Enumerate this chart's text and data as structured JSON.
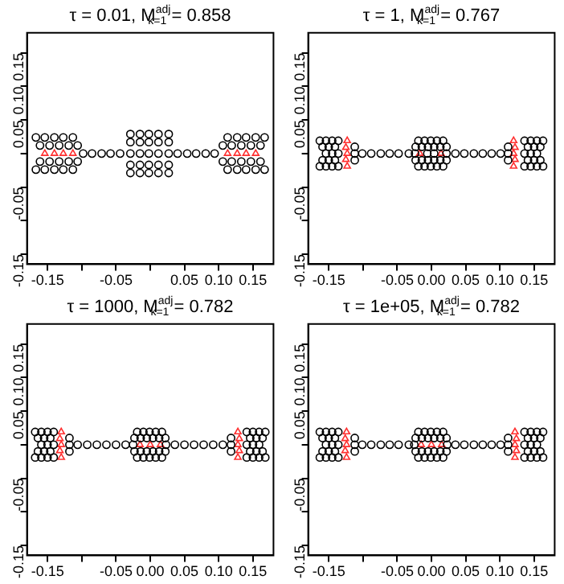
{
  "chart_data": [
    {
      "type": "scatter",
      "title": "τ = 0.01, M$^{adj}$$_{k=1}$ = 0.858",
      "xlim": [
        -0.18,
        0.18
      ],
      "ylim": [
        -0.165,
        0.18
      ],
      "xticks": [
        {
          "value": -0.15,
          "label": "-0.15"
        },
        {
          "value": -0.1,
          "label": null
        },
        {
          "value": -0.05,
          "label": "-0.05"
        },
        {
          "value": 0,
          "label": null
        },
        {
          "value": 0.05,
          "label": "0.05"
        },
        {
          "value": 0.1,
          "label": "0.10"
        },
        {
          "value": 0.15,
          "label": "0.15"
        }
      ],
      "yticks": [
        {
          "value": -0.15,
          "label": "-0.15"
        },
        {
          "value": -0.1,
          "label": null
        },
        {
          "value": -0.05,
          "label": "-0.05"
        },
        {
          "value": 0,
          "label": null
        },
        {
          "value": 0.05,
          "label": "0.05"
        },
        {
          "value": 0.1,
          "label": "0.10"
        },
        {
          "value": 0.15,
          "label": "0.15"
        }
      ],
      "series": [
        {
          "color": "#000000",
          "marker": "circle",
          "x": [
            -0.167,
            -0.154,
            -0.14,
            -0.127,
            -0.113,
            -0.161,
            -0.147,
            -0.133,
            -0.119,
            -0.106,
            -0.161,
            -0.147,
            -0.133,
            -0.119,
            -0.106,
            -0.167,
            -0.154,
            -0.14,
            -0.127,
            -0.113,
            -0.098,
            -0.085,
            -0.071,
            -0.058,
            -0.044,
            -0.029,
            -0.015,
            -0.002,
            0.012,
            0.027,
            -0.029,
            -0.015,
            -0.002,
            0.012,
            0.027,
            -0.029,
            -0.015,
            -0.002,
            0.012,
            0.027,
            -0.029,
            -0.015,
            -0.002,
            0.012,
            0.027,
            -0.029,
            -0.015,
            -0.002,
            0.012,
            0.027,
            0.04,
            0.054,
            0.067,
            0.081,
            0.094,
            0.113,
            0.127,
            0.14,
            0.154,
            0.167,
            0.106,
            0.119,
            0.133,
            0.147,
            0.161,
            0.106,
            0.119,
            0.133,
            0.147,
            0.161,
            0.113,
            0.127,
            0.14,
            0.154,
            0.167
          ],
          "values": [
            0.024,
            0.024,
            0.024,
            0.024,
            0.024,
            0.012,
            0.012,
            0.012,
            0.012,
            0.012,
            -0.012,
            -0.012,
            -0.012,
            -0.012,
            -0.012,
            -0.024,
            -0.024,
            -0.024,
            -0.024,
            -0.024,
            0,
            0,
            0,
            0,
            0,
            0.029,
            0.029,
            0.029,
            0.029,
            0.029,
            0.017,
            0.017,
            0.017,
            0.017,
            0.017,
            0,
            0,
            0,
            0,
            0,
            -0.017,
            -0.017,
            -0.017,
            -0.017,
            -0.017,
            -0.029,
            -0.029,
            -0.029,
            -0.029,
            -0.029,
            0,
            0,
            0,
            0,
            0,
            0.024,
            0.024,
            0.024,
            0.024,
            0.024,
            0.012,
            0.012,
            0.012,
            0.012,
            0.012,
            -0.012,
            -0.012,
            -0.012,
            -0.012,
            -0.012,
            -0.024,
            -0.024,
            -0.024,
            -0.024,
            -0.024
          ]
        },
        {
          "color": "#ff3030",
          "marker": "triangle",
          "x": [
            -0.154,
            -0.14,
            -0.127,
            -0.113,
            0.113,
            0.127,
            0.14,
            0.154
          ],
          "values": [
            0,
            0,
            0,
            0,
            0,
            0,
            0,
            0
          ]
        }
      ]
    },
    {
      "type": "scatter",
      "title": "τ = 1, M$^{adj}$$_{k=1}$ = 0.767",
      "xlim": [
        -0.18,
        0.18
      ],
      "ylim": [
        -0.165,
        0.18
      ],
      "xticks": [
        {
          "value": -0.15,
          "label": "-0.15"
        },
        {
          "value": -0.1,
          "label": null
        },
        {
          "value": -0.05,
          "label": "-0.05"
        },
        {
          "value": 0,
          "label": "0.00"
        },
        {
          "value": 0.05,
          "label": "0.05"
        },
        {
          "value": 0.1,
          "label": "0.10"
        },
        {
          "value": 0.15,
          "label": "0.15"
        }
      ],
      "yticks": [
        {
          "value": -0.15,
          "label": "-0.15"
        },
        {
          "value": -0.1,
          "label": null
        },
        {
          "value": -0.05,
          "label": "-0.05"
        },
        {
          "value": 0,
          "label": null
        },
        {
          "value": 0.05,
          "label": "0.05"
        },
        {
          "value": 0.1,
          "label": "0.10"
        },
        {
          "value": 0.15,
          "label": "0.15"
        }
      ],
      "series": [
        {
          "color": "#000000",
          "marker": "circle",
          "x": [
            -0.163,
            -0.154,
            -0.145,
            -0.136,
            -0.159,
            -0.15,
            -0.141,
            -0.112,
            -0.154,
            -0.145,
            -0.136,
            -0.112,
            -0.159,
            -0.15,
            -0.141,
            -0.112,
            -0.163,
            -0.154,
            -0.145,
            -0.136,
            -0.101,
            -0.088,
            -0.074,
            -0.061,
            -0.048,
            -0.033,
            -0.019,
            -0.01,
            -0.001,
            0.008,
            0.017,
            -0.023,
            -0.014,
            -0.005,
            0.004,
            0.013,
            0.022,
            -0.024,
            -0.006,
            0.004,
            0.022,
            -0.023,
            -0.014,
            -0.005,
            0.004,
            0.013,
            0.022,
            -0.019,
            -0.01,
            -0.001,
            0.008,
            0.017,
            0.035,
            0.048,
            0.062,
            0.075,
            0.088,
            0.101,
            0.136,
            0.145,
            0.154,
            0.163,
            0.112,
            0.141,
            0.15,
            0.159,
            0.112,
            0.136,
            0.145,
            0.154,
            0.112,
            0.141,
            0.15,
            0.159,
            0.136,
            0.145,
            0.154,
            0.163
          ],
          "values": [
            0.019,
            0.019,
            0.019,
            0.019,
            0.01,
            0.01,
            0.01,
            0.01,
            0,
            0,
            0,
            0,
            -0.01,
            -0.01,
            -0.01,
            -0.01,
            -0.019,
            -0.019,
            -0.019,
            -0.019,
            0,
            0,
            0,
            0,
            0,
            0,
            0.019,
            0.019,
            0.019,
            0.019,
            0.019,
            0.01,
            0.01,
            0.01,
            0.01,
            0.01,
            0.01,
            0,
            0,
            0,
            0,
            -0.01,
            -0.01,
            -0.01,
            -0.01,
            -0.01,
            -0.01,
            -0.019,
            -0.019,
            -0.019,
            -0.019,
            -0.019,
            0,
            0,
            0,
            0,
            0,
            0,
            0.019,
            0.019,
            0.019,
            0.019,
            0.01,
            0.01,
            0.01,
            0.01,
            0,
            0,
            0,
            0,
            -0.01,
            -0.01,
            -0.01,
            -0.01,
            -0.019,
            -0.019,
            -0.019,
            -0.019
          ]
        },
        {
          "color": "#ff3030",
          "marker": "triangle",
          "x": [
            -0.123,
            -0.125,
            -0.123,
            -0.125,
            -0.123,
            -0.017,
            0.014,
            0.12,
            0.122,
            0.12,
            0.122,
            0.12
          ],
          "values": [
            0.019,
            0.009,
            0,
            -0.009,
            -0.019,
            0,
            0,
            0.019,
            0.009,
            0,
            -0.009,
            -0.019
          ]
        }
      ]
    },
    {
      "type": "scatter",
      "title": "τ = 1000, M$^{adj}$$_{k=1}$ = 0.782",
      "xlim": [
        -0.18,
        0.18
      ],
      "ylim": [
        -0.165,
        0.18
      ],
      "xticks": [
        {
          "value": -0.15,
          "label": "-0.15"
        },
        {
          "value": -0.1,
          "label": null
        },
        {
          "value": -0.05,
          "label": "-0.05"
        },
        {
          "value": 0,
          "label": "0.00"
        },
        {
          "value": 0.05,
          "label": "0.05"
        },
        {
          "value": 0.1,
          "label": "0.10"
        },
        {
          "value": 0.15,
          "label": "0.15"
        }
      ],
      "yticks": [
        {
          "value": -0.15,
          "label": "-0.15"
        },
        {
          "value": -0.1,
          "label": null
        },
        {
          "value": -0.05,
          "label": "-0.05"
        },
        {
          "value": 0,
          "label": null
        },
        {
          "value": 0.05,
          "label": "0.05"
        },
        {
          "value": 0.1,
          "label": "0.10"
        },
        {
          "value": 0.15,
          "label": "0.15"
        }
      ],
      "series": [
        {
          "color": "#000000",
          "marker": "circle",
          "x": [
            -0.168,
            -0.159,
            -0.15,
            -0.141,
            -0.164,
            -0.155,
            -0.146,
            -0.118,
            -0.159,
            -0.15,
            -0.141,
            -0.118,
            -0.164,
            -0.155,
            -0.146,
            -0.118,
            -0.168,
            -0.159,
            -0.15,
            -0.141,
            -0.106,
            -0.092,
            -0.078,
            -0.064,
            -0.05,
            -0.036,
            -0.019,
            -0.01,
            -0.001,
            0.008,
            0.017,
            -0.023,
            -0.014,
            -0.005,
            0.004,
            0.013,
            0.022,
            -0.025,
            0.023,
            -0.023,
            -0.014,
            -0.005,
            0.004,
            0.013,
            0.022,
            -0.019,
            -0.01,
            -0.001,
            0.008,
            0.017,
            0.036,
            0.05,
            0.064,
            0.078,
            0.092,
            0.106,
            0.141,
            0.15,
            0.159,
            0.168,
            0.118,
            0.146,
            0.155,
            0.164,
            0.118,
            0.141,
            0.15,
            0.159,
            0.118,
            0.146,
            0.155,
            0.164,
            0.141,
            0.15,
            0.159,
            0.168
          ],
          "values": [
            0.019,
            0.019,
            0.019,
            0.019,
            0.01,
            0.01,
            0.01,
            0.01,
            0,
            0,
            0,
            0,
            -0.01,
            -0.01,
            -0.01,
            -0.01,
            -0.019,
            -0.019,
            -0.019,
            -0.019,
            0,
            0,
            0,
            0,
            0,
            0,
            0.019,
            0.019,
            0.019,
            0.019,
            0.019,
            0.01,
            0.01,
            0.01,
            0.01,
            0.01,
            0.01,
            0,
            0,
            -0.01,
            -0.01,
            -0.01,
            -0.01,
            -0.01,
            -0.01,
            -0.019,
            -0.019,
            -0.019,
            -0.019,
            -0.019,
            0,
            0,
            0,
            0,
            0,
            0,
            0.019,
            0.019,
            0.019,
            0.019,
            0.01,
            0.01,
            0.01,
            0.01,
            0,
            0,
            0,
            0,
            -0.01,
            -0.01,
            -0.01,
            -0.01,
            -0.019,
            -0.019,
            -0.019,
            -0.019
          ]
        },
        {
          "color": "#ff3030",
          "marker": "triangle",
          "x": [
            -0.13,
            -0.132,
            -0.13,
            -0.132,
            -0.13,
            -0.015,
            0,
            0.015,
            0.128,
            0.13,
            0.128,
            0.13,
            0.128
          ],
          "values": [
            0.019,
            0.009,
            0,
            -0.009,
            -0.019,
            0,
            0,
            0,
            0.019,
            0.009,
            0,
            -0.009,
            -0.019
          ]
        }
      ]
    },
    {
      "type": "scatter",
      "title": "τ = 1e+05, M$^{adj}$$_{k=1}$ = 0.782",
      "xlim": [
        -0.18,
        0.18
      ],
      "ylim": [
        -0.165,
        0.18
      ],
      "xticks": [
        {
          "value": -0.15,
          "label": "-0.15"
        },
        {
          "value": -0.1,
          "label": null
        },
        {
          "value": -0.05,
          "label": "-0.05"
        },
        {
          "value": 0,
          "label": "0.00"
        },
        {
          "value": 0.05,
          "label": "0.05"
        },
        {
          "value": 0.1,
          "label": "0.10"
        },
        {
          "value": 0.15,
          "label": "0.15"
        }
      ],
      "yticks": [
        {
          "value": -0.15,
          "label": "-0.15"
        },
        {
          "value": -0.1,
          "label": null
        },
        {
          "value": -0.05,
          "label": "-0.05"
        },
        {
          "value": 0,
          "label": null
        },
        {
          "value": 0.05,
          "label": "0.05"
        },
        {
          "value": 0.1,
          "label": "0.10"
        },
        {
          "value": 0.15,
          "label": "0.15"
        }
      ],
      "series": [
        {
          "color": "#000000",
          "marker": "circle",
          "x": [
            -0.163,
            -0.154,
            -0.145,
            -0.136,
            -0.159,
            -0.15,
            -0.141,
            -0.112,
            -0.154,
            -0.145,
            -0.136,
            -0.112,
            -0.159,
            -0.15,
            -0.141,
            -0.112,
            -0.163,
            -0.154,
            -0.145,
            -0.136,
            -0.101,
            -0.088,
            -0.074,
            -0.061,
            -0.048,
            -0.033,
            -0.019,
            -0.01,
            -0.001,
            0.008,
            0.017,
            -0.023,
            -0.014,
            -0.005,
            0.004,
            0.013,
            0.022,
            -0.025,
            0.023,
            -0.023,
            -0.014,
            -0.005,
            0.004,
            0.013,
            0.022,
            -0.019,
            -0.01,
            -0.001,
            0.008,
            0.017,
            0.035,
            0.048,
            0.062,
            0.075,
            0.088,
            0.101,
            0.136,
            0.145,
            0.154,
            0.163,
            0.112,
            0.141,
            0.15,
            0.159,
            0.112,
            0.136,
            0.145,
            0.154,
            0.112,
            0.141,
            0.15,
            0.159,
            0.136,
            0.145,
            0.154,
            0.163
          ],
          "values": [
            0.019,
            0.019,
            0.019,
            0.019,
            0.01,
            0.01,
            0.01,
            0.01,
            0,
            0,
            0,
            0,
            -0.01,
            -0.01,
            -0.01,
            -0.01,
            -0.019,
            -0.019,
            -0.019,
            -0.019,
            0,
            0,
            0,
            0,
            0,
            0,
            0.019,
            0.019,
            0.019,
            0.019,
            0.019,
            0.01,
            0.01,
            0.01,
            0.01,
            0.01,
            0.01,
            0,
            0,
            -0.01,
            -0.01,
            -0.01,
            -0.01,
            -0.01,
            -0.01,
            -0.019,
            -0.019,
            -0.019,
            -0.019,
            -0.019,
            0,
            0,
            0,
            0,
            0,
            0,
            0.019,
            0.019,
            0.019,
            0.019,
            0.01,
            0.01,
            0.01,
            0.01,
            0,
            0,
            0,
            0,
            -0.01,
            -0.01,
            -0.01,
            -0.01,
            -0.019,
            -0.019,
            -0.019,
            -0.019
          ]
        },
        {
          "color": "#ff3030",
          "marker": "triangle",
          "x": [
            -0.124,
            -0.126,
            -0.124,
            -0.126,
            -0.124,
            -0.015,
            0,
            0.015,
            0.122,
            0.124,
            0.122,
            0.124,
            0.122
          ],
          "values": [
            0.019,
            0.009,
            0,
            -0.009,
            -0.019,
            0,
            0,
            0,
            0.019,
            0.009,
            0,
            -0.009,
            -0.019
          ]
        }
      ]
    }
  ]
}
